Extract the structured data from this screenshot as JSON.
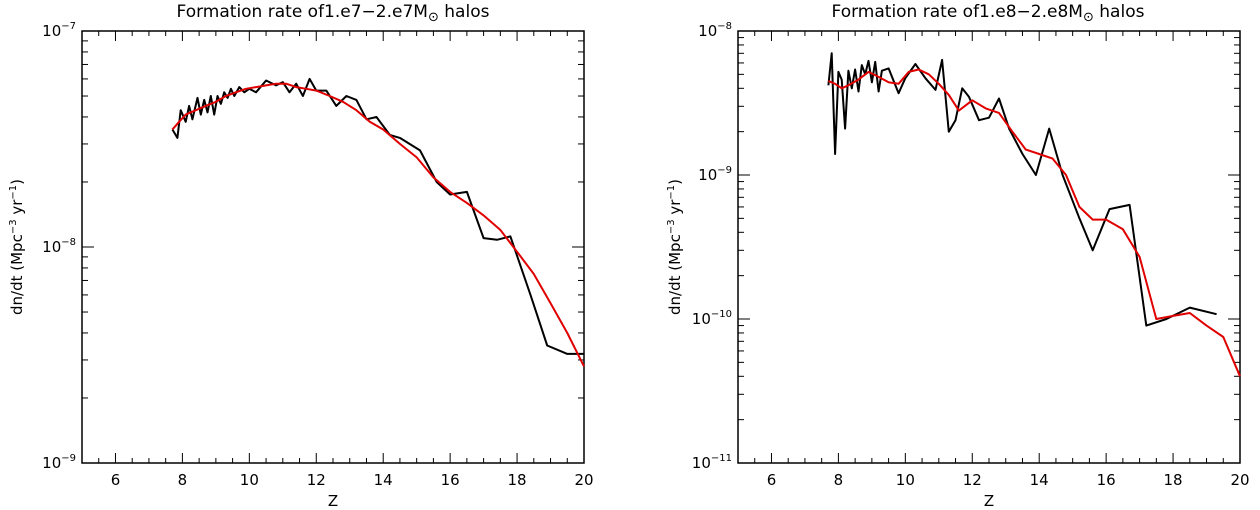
{
  "chart_data": [
    {
      "type": "line",
      "title_prefix": "Formation rate of1.e7−2.e7M",
      "title_suffix": " halos",
      "title_symbol": "⊙",
      "xlabel": "Z",
      "ylabel_prefix": "dn/dt (Mpc",
      "ylabel_mid": " yr",
      "ylabel_suffix": ")",
      "ylabel_sup1": "−3",
      "ylabel_sup2": "−1",
      "xlim": [
        5,
        20
      ],
      "ylim": [
        1e-09,
        1e-07
      ],
      "yscale": "log",
      "xticks": [
        6,
        8,
        10,
        12,
        14,
        16,
        18,
        20
      ],
      "yticks": [
        {
          "value": 1e-09,
          "base": "10",
          "exp": "−9"
        },
        {
          "value": 1e-08,
          "base": "10",
          "exp": "−8"
        },
        {
          "value": 1e-07,
          "base": "10",
          "exp": "−7"
        }
      ],
      "series": [
        {
          "color": "#000000",
          "x": [
            7.7,
            7.85,
            7.95,
            8.1,
            8.2,
            8.3,
            8.45,
            8.55,
            8.65,
            8.75,
            8.85,
            8.95,
            9.05,
            9.15,
            9.25,
            9.35,
            9.45,
            9.55,
            9.7,
            9.85,
            10.0,
            10.2,
            10.5,
            10.8,
            11.0,
            11.2,
            11.4,
            11.6,
            11.8,
            12.0,
            12.3,
            12.6,
            12.9,
            13.2,
            13.5,
            13.8,
            14.2,
            14.5,
            15.1,
            15.6,
            16.0,
            16.5,
            17.0,
            17.4,
            17.8,
            18.4,
            18.9,
            19.5,
            20.0
          ],
          "y": [
            3.5e-08,
            3.2e-08,
            4.3e-08,
            3.8e-08,
            4.5e-08,
            3.9e-08,
            4.9e-08,
            4.1e-08,
            4.8e-08,
            4.2e-08,
            5e-08,
            4.1e-08,
            5e-08,
            4.6e-08,
            5.2e-08,
            4.9e-08,
            5.4e-08,
            5e-08,
            5.5e-08,
            5.2e-08,
            5.4e-08,
            5.2e-08,
            5.9e-08,
            5.6e-08,
            5.8e-08,
            5.2e-08,
            5.7e-08,
            5e-08,
            6e-08,
            5.3e-08,
            5.3e-08,
            4.5e-08,
            5e-08,
            4.8e-08,
            3.9e-08,
            4e-08,
            3.3e-08,
            3.2e-08,
            2.8e-08,
            2e-08,
            1.75e-08,
            1.8e-08,
            1.1e-08,
            1.08e-08,
            1.12e-08,
            6e-09,
            3.5e-09,
            3.2e-09,
            3.2e-09
          ]
        },
        {
          "color": "#e00000",
          "x": [
            7.7,
            7.9,
            8.1,
            8.4,
            8.7,
            9.0,
            9.3,
            9.6,
            9.9,
            10.2,
            10.5,
            10.8,
            11.1,
            11.4,
            11.7,
            12.0,
            12.4,
            12.8,
            13.2,
            13.6,
            14.0,
            14.5,
            15.0,
            15.5,
            16.0,
            16.5,
            17.0,
            17.5,
            18.0,
            18.5,
            19.0,
            19.5,
            20.0
          ],
          "y": [
            3.5e-08,
            3.8e-08,
            4.1e-08,
            4.3e-08,
            4.5e-08,
            4.7e-08,
            5e-08,
            5.2e-08,
            5.4e-08,
            5.5e-08,
            5.6e-08,
            5.7e-08,
            5.7e-08,
            5.5e-08,
            5.4e-08,
            5.3e-08,
            5e-08,
            4.7e-08,
            4.3e-08,
            3.8e-08,
            3.5e-08,
            3e-08,
            2.6e-08,
            2.1e-08,
            1.8e-08,
            1.6e-08,
            1.4e-08,
            1.2e-08,
            9.5e-09,
            7.5e-09,
            5.5e-09,
            4e-09,
            2.8e-09
          ]
        }
      ]
    },
    {
      "type": "line",
      "title_prefix": "Formation rate of1.e8−2.e8M",
      "title_suffix": " halos",
      "title_symbol": "⊙",
      "xlabel": "Z",
      "ylabel_prefix": "dn/dt (Mpc",
      "ylabel_mid": " yr",
      "ylabel_suffix": ")",
      "ylabel_sup1": "−3",
      "ylabel_sup2": "−1",
      "xlim": [
        5,
        20
      ],
      "ylim": [
        1e-11,
        1e-08
      ],
      "yscale": "log",
      "xticks": [
        6,
        8,
        10,
        12,
        14,
        16,
        18,
        20
      ],
      "yticks": [
        {
          "value": 1e-11,
          "base": "10",
          "exp": "−11"
        },
        {
          "value": 1e-10,
          "base": "10",
          "exp": "−10"
        },
        {
          "value": 1e-09,
          "base": "10",
          "exp": "−9"
        },
        {
          "value": 1e-08,
          "base": "10",
          "exp": "−8"
        }
      ],
      "series": [
        {
          "color": "#000000",
          "x": [
            7.7,
            7.8,
            7.9,
            8.0,
            8.1,
            8.2,
            8.3,
            8.4,
            8.5,
            8.6,
            8.7,
            8.8,
            8.9,
            9.0,
            9.1,
            9.2,
            9.3,
            9.5,
            9.8,
            10.0,
            10.3,
            10.6,
            10.9,
            11.1,
            11.3,
            11.5,
            11.7,
            11.9,
            12.2,
            12.5,
            12.8,
            13.1,
            13.5,
            13.9,
            14.3,
            14.7,
            15.2,
            15.6,
            16.1,
            16.7,
            17.2,
            17.8,
            18.5,
            19.3
          ],
          "y": [
            4.2e-09,
            7e-09,
            1.4e-09,
            5.2e-09,
            4.6e-09,
            2.1e-09,
            5.3e-09,
            4e-09,
            5.4e-09,
            3.8e-09,
            5.8e-09,
            5e-09,
            6.2e-09,
            4.4e-09,
            6.1e-09,
            3.8e-09,
            5.3e-09,
            5.5e-09,
            3.7e-09,
            4.7e-09,
            5.9e-09,
            4.7e-09,
            3.9e-09,
            6.3e-09,
            2e-09,
            2.4e-09,
            4e-09,
            3.5e-09,
            2.4e-09,
            2.5e-09,
            3.4e-09,
            2.1e-09,
            1.4e-09,
            1e-09,
            2.1e-09,
            1e-09,
            5e-10,
            3e-10,
            5.8e-10,
            6.2e-10,
            9e-11,
            1e-10,
            1.2e-10,
            1.08e-10
          ]
        },
        {
          "color": "#e00000",
          "x": [
            7.7,
            7.9,
            8.1,
            8.3,
            8.6,
            8.9,
            9.2,
            9.5,
            9.8,
            10.1,
            10.4,
            10.7,
            11.0,
            11.3,
            11.6,
            12.0,
            12.4,
            12.8,
            13.2,
            13.6,
            14.0,
            14.4,
            14.8,
            15.2,
            15.6,
            16.0,
            16.5,
            17.0,
            17.5,
            18.0,
            18.5,
            19.0,
            19.5,
            20.0
          ],
          "y": [
            4.5e-09,
            4.3e-09,
            4e-09,
            4.2e-09,
            4.6e-09,
            5.2e-09,
            4.8e-09,
            4.4e-09,
            4.3e-09,
            5.2e-09,
            5.4e-09,
            5e-09,
            4.3e-09,
            3.6e-09,
            2.8e-09,
            3.3e-09,
            2.9e-09,
            2.7e-09,
            2e-09,
            1.5e-09,
            1.4e-09,
            1.3e-09,
            1e-09,
            6e-10,
            4.9e-10,
            4.9e-10,
            4.2e-10,
            2.7e-10,
            1e-10,
            1.05e-10,
            1.1e-10,
            9e-11,
            7.5e-11,
            4e-11
          ]
        }
      ]
    }
  ]
}
